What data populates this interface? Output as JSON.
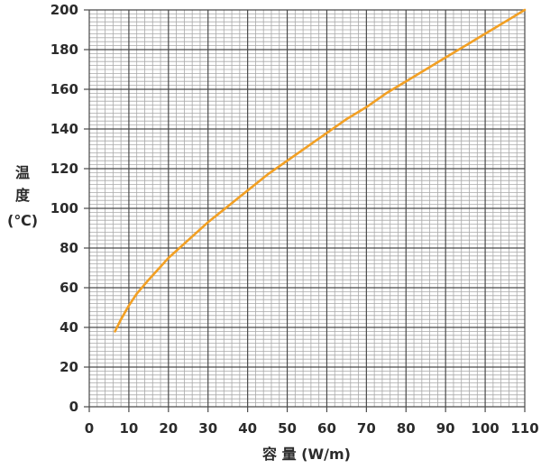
{
  "chart_data": {
    "type": "line",
    "xlabel": "容 量 (W/m)",
    "ylabel": [
      "温",
      "度",
      "(℃)"
    ],
    "xlim": [
      0,
      110
    ],
    "ylim": [
      0,
      200
    ],
    "xticks": [
      "0",
      "10",
      "20",
      "30",
      "40",
      "50",
      "60",
      "70",
      "80",
      "90",
      "100",
      "110"
    ],
    "yticks": [
      "0",
      "20",
      "40",
      "60",
      "80",
      "100",
      "120",
      "140",
      "160",
      "180",
      "200"
    ],
    "grid": true,
    "grid_minor_step": 2,
    "line_color": "#f2a024",
    "series": [
      {
        "x": [
          6.5,
          8,
          10,
          12,
          15,
          20,
          25,
          30,
          35,
          40,
          45,
          50,
          55,
          60,
          65,
          70,
          75,
          80,
          85,
          90,
          95,
          100,
          105,
          110
        ],
        "y": [
          38,
          44,
          51,
          57,
          64,
          75,
          84,
          93,
          101,
          109,
          117,
          124,
          131,
          138,
          145,
          151,
          158,
          164,
          170,
          176,
          182,
          188,
          194,
          200
        ]
      }
    ]
  }
}
